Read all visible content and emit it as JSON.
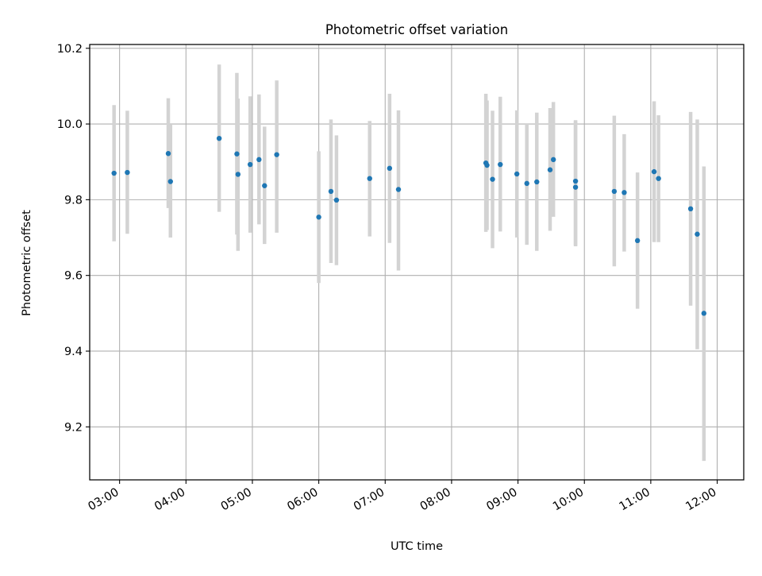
{
  "chart_data": {
    "type": "scatter",
    "title": "Photometric offset variation",
    "xlabel": "UTC time",
    "ylabel": "Photometric offset",
    "x_tick_labels": [
      "03:00",
      "04:00",
      "05:00",
      "06:00",
      "07:00",
      "08:00",
      "09:00",
      "10:00",
      "11:00",
      "12:00"
    ],
    "y_tick_labels": [
      "9.2",
      "9.4",
      "9.6",
      "9.8",
      "10.0",
      "10.2"
    ],
    "y_ticks": [
      9.2,
      9.4,
      9.6,
      9.8,
      10.0,
      10.2
    ],
    "xlim": [
      "02:33",
      "12:24"
    ],
    "ylim": [
      9.06,
      10.21
    ],
    "grid": true,
    "colors": {
      "point": "#1f77b4",
      "error_bar": "#d3d3d3",
      "grid": "#b0b0b0"
    },
    "series": [
      {
        "x": [
          "02:55",
          "03:07",
          "03:44",
          "03:46",
          "04:30",
          "04:46",
          "04:47",
          "04:58",
          "05:06",
          "05:11",
          "05:22",
          "06:00",
          "06:11",
          "06:16",
          "06:46",
          "07:04",
          "07:12",
          "08:31",
          "08:32",
          "08:37",
          "08:44",
          "08:59",
          "09:08",
          "09:17",
          "09:29",
          "09:32",
          "09:52",
          "09:52",
          "10:27",
          "10:36",
          "10:48",
          "11:03",
          "11:07",
          "11:36",
          "11:42",
          "11:48"
        ],
        "y": [
          9.87,
          9.872,
          9.922,
          9.848,
          9.962,
          9.921,
          9.867,
          9.893,
          9.906,
          9.837,
          9.919,
          9.754,
          9.822,
          9.799,
          9.856,
          9.883,
          9.827,
          9.897,
          9.891,
          9.854,
          9.893,
          9.868,
          9.843,
          9.847,
          9.879,
          9.906,
          9.849,
          9.833,
          9.822,
          9.819,
          9.692,
          9.874,
          9.856,
          9.776,
          9.709,
          9.5
        ],
        "y_low": [
          9.69,
          9.71,
          9.778,
          9.7,
          9.768,
          9.708,
          9.665,
          9.713,
          9.735,
          9.683,
          9.713,
          9.58,
          9.633,
          9.627,
          9.703,
          9.686,
          9.613,
          9.715,
          9.72,
          9.672,
          9.716,
          9.7,
          9.681,
          9.665,
          9.718,
          9.755,
          9.677,
          9.68,
          9.624,
          9.663,
          9.512,
          9.688,
          9.688,
          9.52,
          9.405,
          9.11
        ],
        "y_high": [
          10.05,
          10.035,
          10.068,
          9.998,
          10.157,
          10.135,
          10.067,
          10.073,
          10.078,
          9.993,
          10.115,
          9.928,
          10.012,
          9.97,
          10.008,
          10.08,
          10.036,
          10.08,
          10.062,
          10.035,
          10.072,
          10.036,
          10.002,
          10.03,
          10.042,
          10.058,
          10.01,
          10.007,
          10.022,
          9.973,
          9.872,
          10.06,
          10.023,
          10.032,
          10.012,
          9.888
        ]
      }
    ]
  }
}
